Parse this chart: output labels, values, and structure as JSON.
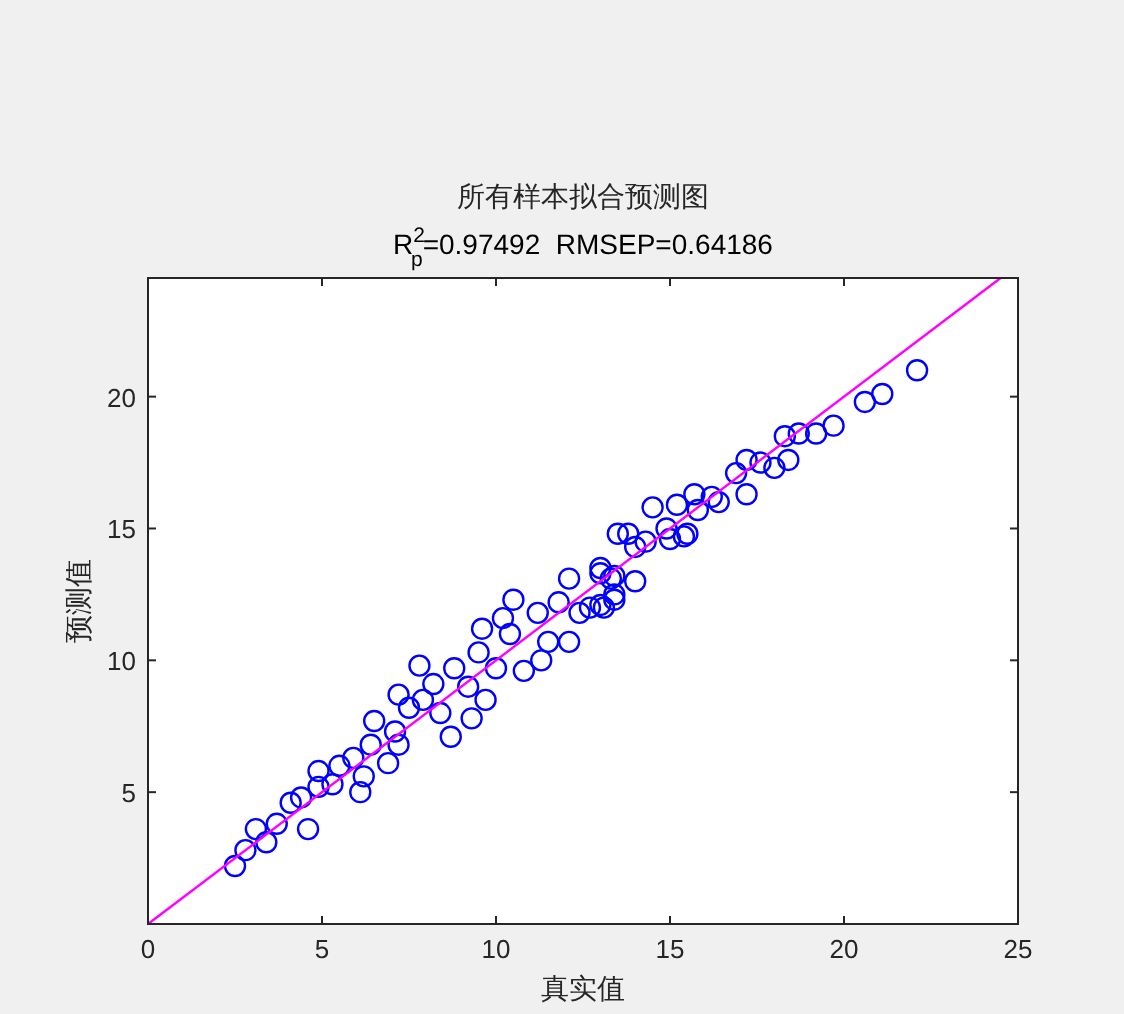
{
  "chart_data": {
    "type": "scatter",
    "title": "所有样本拟合预测图",
    "subtitle": "R$^{2}$$_{p}$=0.97492  RMSEP=0.64186",
    "xlabel": "真实值",
    "ylabel": "预测值",
    "xlim": [
      0,
      25
    ],
    "ylim": [
      0,
      24.5
    ],
    "xticks": [
      0,
      5,
      10,
      15,
      20,
      25
    ],
    "yticks": [
      5,
      10,
      15,
      20
    ],
    "grid": false,
    "series": [
      {
        "marker": "circle",
        "color": "#0000ff",
        "x": [
          2.5,
          2.8,
          3.1,
          3.4,
          3.7,
          4.1,
          4.4,
          4.6,
          4.9,
          4.9,
          5.3,
          5.5,
          6.1,
          6.2,
          5.9,
          6.5,
          6.4,
          6.9,
          7.1,
          7.2,
          7.2,
          7.5,
          7.8,
          7.9,
          8.2,
          8.4,
          8.7,
          8.8,
          9.2,
          9.3,
          9.5,
          9.6,
          9.7,
          10.0,
          10.2,
          10.5,
          10.4,
          10.8,
          11.2,
          11.3,
          11.5,
          11.8,
          12.1,
          12.1,
          12.4,
          12.7,
          13.0,
          13.4,
          13.0,
          13.4,
          14.0,
          13.5,
          13.8,
          14.0,
          14.3,
          14.5,
          14.9,
          15.2,
          15.5,
          15.7,
          15.8,
          16.2,
          16.4,
          17.2,
          16.9,
          17.2,
          17.6,
          18.0,
          18.4,
          18.3,
          18.7,
          19.2,
          19.7,
          20.6,
          21.1,
          22.1,
          15.4,
          15.0,
          13.0,
          13.3,
          13.4,
          13.1
        ],
        "values": [
          2.2,
          2.8,
          3.6,
          3.1,
          3.8,
          4.6,
          4.8,
          3.6,
          5.2,
          5.8,
          5.3,
          6.0,
          5.0,
          5.6,
          6.3,
          7.7,
          6.8,
          6.1,
          7.3,
          6.8,
          8.7,
          8.2,
          9.8,
          8.5,
          9.1,
          8.0,
          7.1,
          9.7,
          9.0,
          7.8,
          10.3,
          11.2,
          8.5,
          9.7,
          11.6,
          12.3,
          11.0,
          9.6,
          11.8,
          10.0,
          10.7,
          12.2,
          13.1,
          10.7,
          11.8,
          12.0,
          12.1,
          12.3,
          13.5,
          13.2,
          13.0,
          14.8,
          14.8,
          14.3,
          14.5,
          15.8,
          15.0,
          15.9,
          14.8,
          16.3,
          15.7,
          16.2,
          16.0,
          16.3,
          17.1,
          17.6,
          17.5,
          17.3,
          17.6,
          18.5,
          18.6,
          18.6,
          18.9,
          19.8,
          20.1,
          21.0,
          14.7,
          14.6,
          13.3,
          13.1,
          12.5,
          12.0
        ]
      },
      {
        "type": "line",
        "color": "#ff00ff",
        "x": [
          0,
          24.5
        ],
        "values": [
          0,
          24.5
        ]
      }
    ]
  }
}
